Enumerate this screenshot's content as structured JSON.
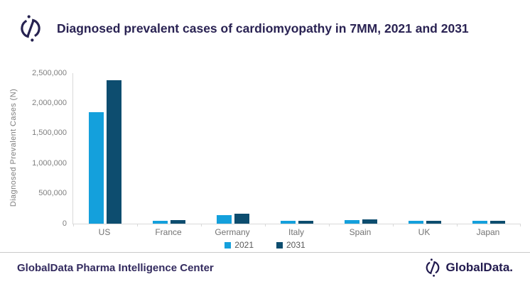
{
  "header": {
    "title": "Diagnosed prevalent cases of cardiomyopathy in 7MM, 2021 and 2031",
    "logo_icon": "globaldata-logo-icon"
  },
  "chart_data": {
    "type": "bar",
    "title": "Diagnosed prevalent cases of cardiomyopathy in 7MM, 2021 and 2031",
    "categories": [
      "US",
      "France",
      "Germany",
      "Italy",
      "Spain",
      "UK",
      "Japan"
    ],
    "series": [
      {
        "name": "2021",
        "color": "#14A0DC",
        "values": [
          1850000,
          50000,
          145000,
          45000,
          58000,
          43000,
          48000
        ]
      },
      {
        "name": "2031",
        "color": "#0D4D6F",
        "values": [
          2380000,
          62000,
          160000,
          53000,
          75000,
          53000,
          52000
        ]
      }
    ],
    "xlabel": "",
    "ylabel": "Diagnosed Prevalent Cases (N)",
    "ylim": [
      0,
      2500000
    ],
    "y_ticks": [
      0,
      500000,
      1000000,
      1500000,
      2000000,
      2500000
    ],
    "y_tick_labels": [
      "0",
      "500,000",
      "1,000,000",
      "1,500,000",
      "2,000,000",
      "2,500,000"
    ],
    "grid": false,
    "legend_position": "bottom"
  },
  "legend": {
    "items": [
      {
        "label": "2021",
        "color": "#14A0DC"
      },
      {
        "label": "2031",
        "color": "#0D4D6F"
      }
    ]
  },
  "footer": {
    "left_text": "GlobalData Pharma Intelligence Center",
    "brand_text": "GlobalData.",
    "brand_icon": "globaldata-logo-icon"
  },
  "colors": {
    "title_navy": "#2A2353",
    "series_2021": "#14A0DC",
    "series_2031": "#0D4D6F",
    "axis_gray": "#D9D9D9",
    "tick_text_gray": "#7F7F7F"
  }
}
